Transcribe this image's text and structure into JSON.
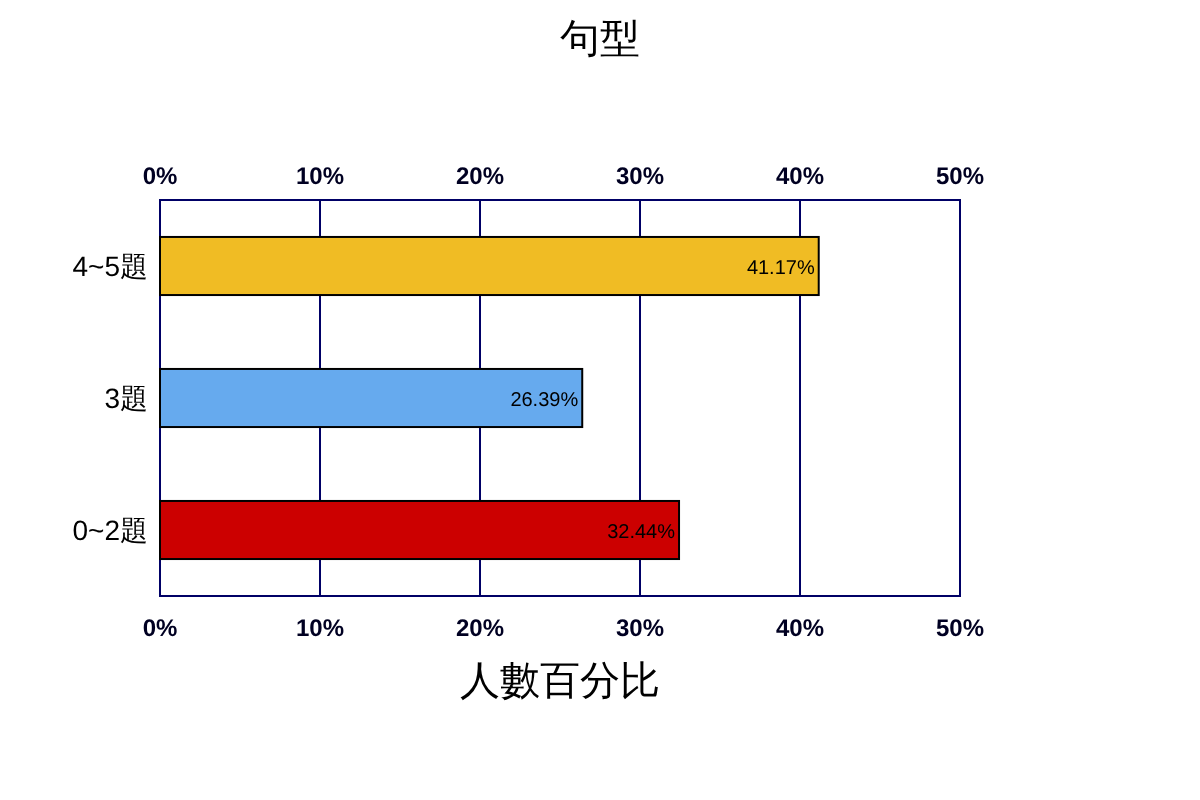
{
  "chart_data": {
    "type": "bar",
    "orientation": "horizontal",
    "title": "句型",
    "xlabel": "人數百分比",
    "categories": [
      "4~5題",
      "3題",
      "0~2題"
    ],
    "values": [
      41.17,
      26.39,
      32.44
    ],
    "colors": [
      "#f0bc24",
      "#66aaee",
      "#cc0000"
    ],
    "value_labels": [
      "41.17%",
      "26.39%",
      "32.44%"
    ],
    "xlim": [
      0,
      50
    ],
    "xticks": [
      {
        "value": 0,
        "label": "0%"
      },
      {
        "value": 10,
        "label": "10%"
      },
      {
        "value": 20,
        "label": "20%"
      },
      {
        "value": 30,
        "label": "30%"
      },
      {
        "value": 40,
        "label": "40%"
      },
      {
        "value": 50,
        "label": "50%"
      }
    ],
    "x2lim": [
      0,
      50
    ],
    "x2ticks": [
      {
        "value": 0,
        "label": "0%"
      },
      {
        "value": 10,
        "label": "10%"
      },
      {
        "value": 20,
        "label": "20%"
      },
      {
        "value": 30,
        "label": "30%"
      },
      {
        "value": 40,
        "label": "40%"
      },
      {
        "value": 50,
        "label": "50%"
      }
    ],
    "grid": "x"
  }
}
